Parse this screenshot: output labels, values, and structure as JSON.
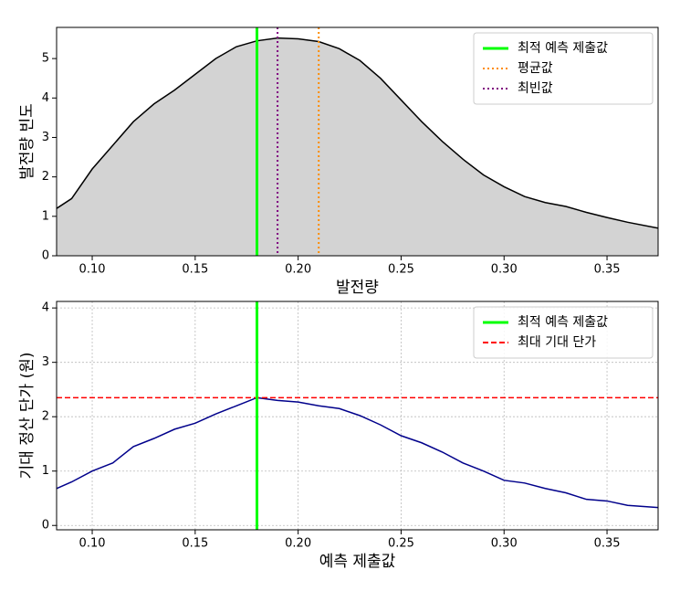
{
  "chart_data": [
    {
      "type": "area",
      "xlabel": "발전량",
      "ylabel": "발전량 빈도",
      "x": [
        0.0827,
        0.09,
        0.1,
        0.11,
        0.12,
        0.13,
        0.14,
        0.15,
        0.16,
        0.17,
        0.18,
        0.19,
        0.2,
        0.21,
        0.22,
        0.23,
        0.24,
        0.25,
        0.26,
        0.27,
        0.28,
        0.29,
        0.3,
        0.31,
        0.32,
        0.33,
        0.34,
        0.35,
        0.36,
        0.3748
      ],
      "values": [
        1.2,
        1.45,
        2.2,
        2.8,
        3.4,
        3.85,
        4.2,
        4.6,
        5.0,
        5.3,
        5.45,
        5.52,
        5.5,
        5.43,
        5.25,
        4.95,
        4.5,
        3.95,
        3.4,
        2.9,
        2.45,
        2.05,
        1.75,
        1.5,
        1.35,
        1.25,
        1.1,
        0.97,
        0.85,
        0.7
      ],
      "color": "#000000",
      "fill": "#d3d3d3",
      "vlines": [
        {
          "name": "최적 예측 제출값",
          "color": "#00ff00",
          "style": "solid",
          "x": 0.18
        },
        {
          "name": "평균값",
          "color": "#ff8c00",
          "style": "dotted",
          "x": 0.21
        },
        {
          "name": "최빈값",
          "color": "#800080",
          "style": "dotted",
          "x": 0.19
        }
      ],
      "xlim": [
        0.0827,
        0.3748
      ],
      "ylim": [
        0,
        5.79
      ],
      "xticks": [
        {
          "value": 0.1,
          "label": "0.10"
        },
        0.15,
        {
          "value": 0.2,
          "label": "0.20"
        },
        0.25,
        {
          "value": 0.3,
          "label": "0.30"
        },
        0.35
      ],
      "yticks": [
        0,
        1,
        2,
        3,
        4,
        5
      ],
      "grid": false,
      "legend": "upper right"
    },
    {
      "type": "line",
      "xlabel": "예측 제출값",
      "ylabel": "기대 정산 단가 (원)",
      "x": [
        0.0827,
        0.09,
        0.1,
        0.11,
        0.12,
        0.13,
        0.14,
        0.15,
        0.16,
        0.17,
        0.18,
        0.19,
        0.2,
        0.21,
        0.22,
        0.23,
        0.24,
        0.25,
        0.26,
        0.27,
        0.28,
        0.29,
        0.3,
        0.31,
        0.32,
        0.33,
        0.34,
        0.35,
        0.36,
        0.3748
      ],
      "values": [
        0.68,
        0.8,
        1.0,
        1.15,
        1.45,
        1.6,
        1.77,
        1.88,
        2.05,
        2.2,
        2.35,
        2.3,
        2.27,
        2.2,
        2.15,
        2.02,
        1.85,
        1.65,
        1.52,
        1.35,
        1.15,
        1.0,
        0.83,
        0.78,
        0.68,
        0.6,
        0.48,
        0.45,
        0.37,
        0.33
      ],
      "color": "#00008b",
      "vlines": [
        {
          "name": "최적 예측 제출값",
          "color": "#00ff00",
          "style": "solid",
          "x": 0.18
        }
      ],
      "hlines": [
        {
          "name": "최대 기대 단가",
          "color": "#ff0000",
          "style": "dashed",
          "y": 2.35
        }
      ],
      "xlim": [
        0.0827,
        0.3748
      ],
      "ylim": [
        -0.08,
        4.12
      ],
      "xticks": [
        {
          "value": 0.1,
          "label": "0.10"
        },
        0.15,
        {
          "value": 0.2,
          "label": "0.20"
        },
        0.25,
        {
          "value": 0.3,
          "label": "0.30"
        },
        0.35
      ],
      "yticks": [
        0,
        1,
        2,
        3,
        4
      ],
      "grid": true,
      "legend": "upper right"
    }
  ]
}
